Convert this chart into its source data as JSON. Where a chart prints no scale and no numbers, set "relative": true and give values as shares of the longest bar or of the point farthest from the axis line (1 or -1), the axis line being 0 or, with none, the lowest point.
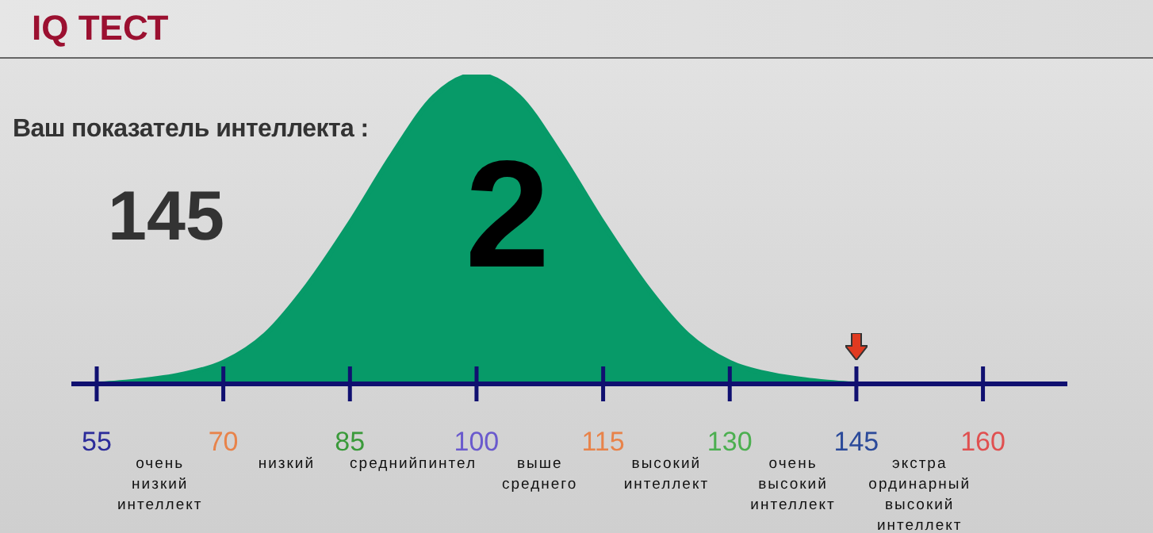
{
  "chart_data": {
    "type": "area",
    "title": "IQ ТЕСТ",
    "relative": true,
    "color": "#079a68",
    "x": [
      52,
      55,
      60,
      65,
      70,
      75,
      80,
      85,
      90,
      95,
      100,
      105,
      110,
      115,
      120,
      125,
      130,
      135,
      140,
      145,
      150,
      160,
      170
    ],
    "values": [
      0,
      0,
      0.01,
      0.03,
      0.07,
      0.16,
      0.32,
      0.52,
      0.74,
      0.93,
      1,
      0.93,
      0.74,
      0.52,
      0.32,
      0.16,
      0.07,
      0.03,
      0.01,
      0,
      0,
      0,
      0
    ],
    "xlim": [
      52,
      170
    ],
    "xticks": [
      55,
      70,
      85,
      100,
      115,
      130,
      145,
      160
    ],
    "annotations": [
      "Ваш показатель интеллекта :",
      "145",
      "2",
      "очень\nнизкий\nинтеллект",
      "низкий",
      "среднийпинтел",
      "выше\nсреднего",
      "высокий\nинтеллект",
      "очень\nвысокий\nинтеллект",
      "экстра\nординарный\nвысокий\nинтеллект"
    ]
  }
}
